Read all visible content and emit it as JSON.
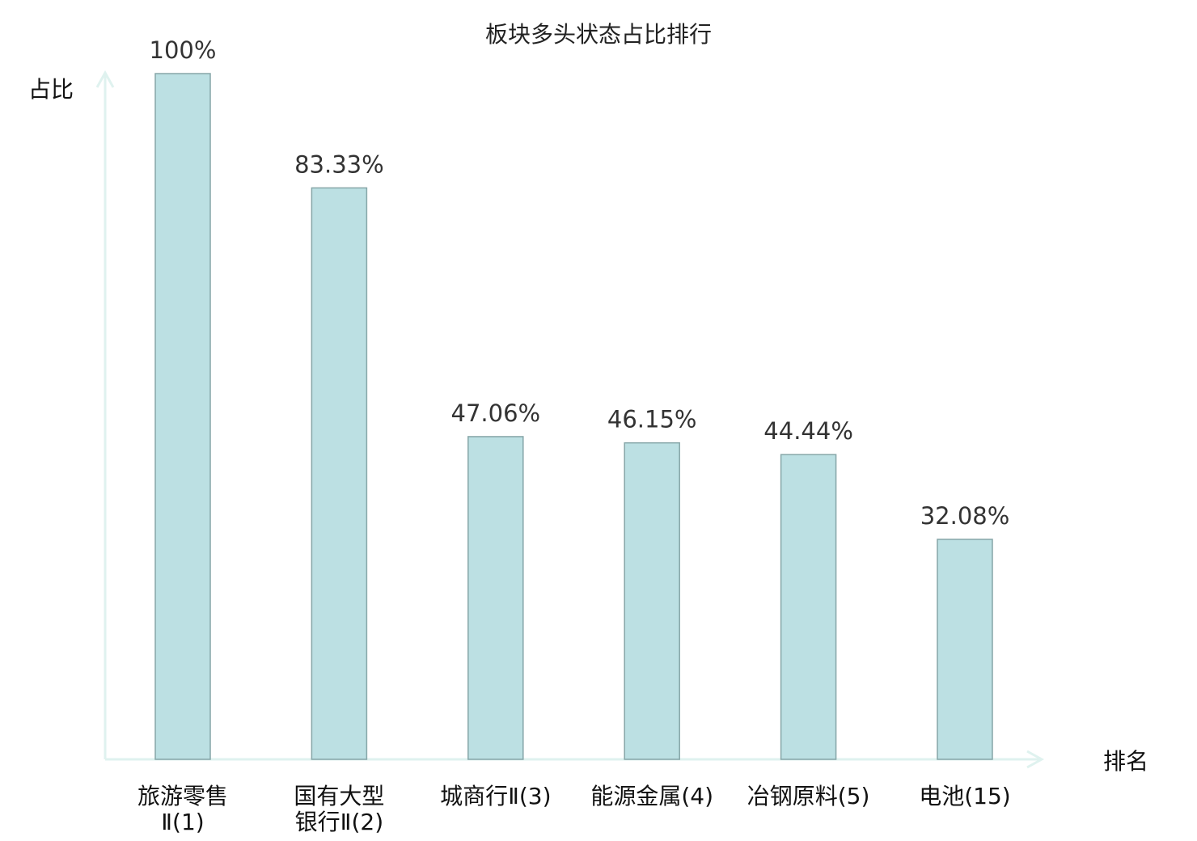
{
  "chart_data": {
    "type": "bar",
    "title": "板块多头状态占比排行",
    "xlabel": "排名",
    "ylabel": "占比",
    "categories": [
      [
        "旅游零售",
        "Ⅱ(1)"
      ],
      [
        "国有大型",
        "银行Ⅱ(2)"
      ],
      [
        "城商行Ⅱ(3)"
      ],
      [
        "能源金属(4)"
      ],
      [
        "冶钢原料(5)"
      ],
      [
        "电池(15)"
      ]
    ],
    "values": [
      100,
      83.33,
      47.06,
      46.15,
      44.44,
      32.08
    ],
    "data_labels": [
      "100%",
      "83.33%",
      "47.06%",
      "46.15%",
      "44.44%",
      "32.08%"
    ],
    "highlight_index": 5,
    "ylim": [
      0,
      100
    ],
    "grid": false,
    "colors": {
      "bar_fill": "#bce0e3",
      "bar_stroke": "#86a6a8",
      "axis": "#dff2ef",
      "highlight_label": "#ee0000",
      "label": "#111111"
    }
  }
}
